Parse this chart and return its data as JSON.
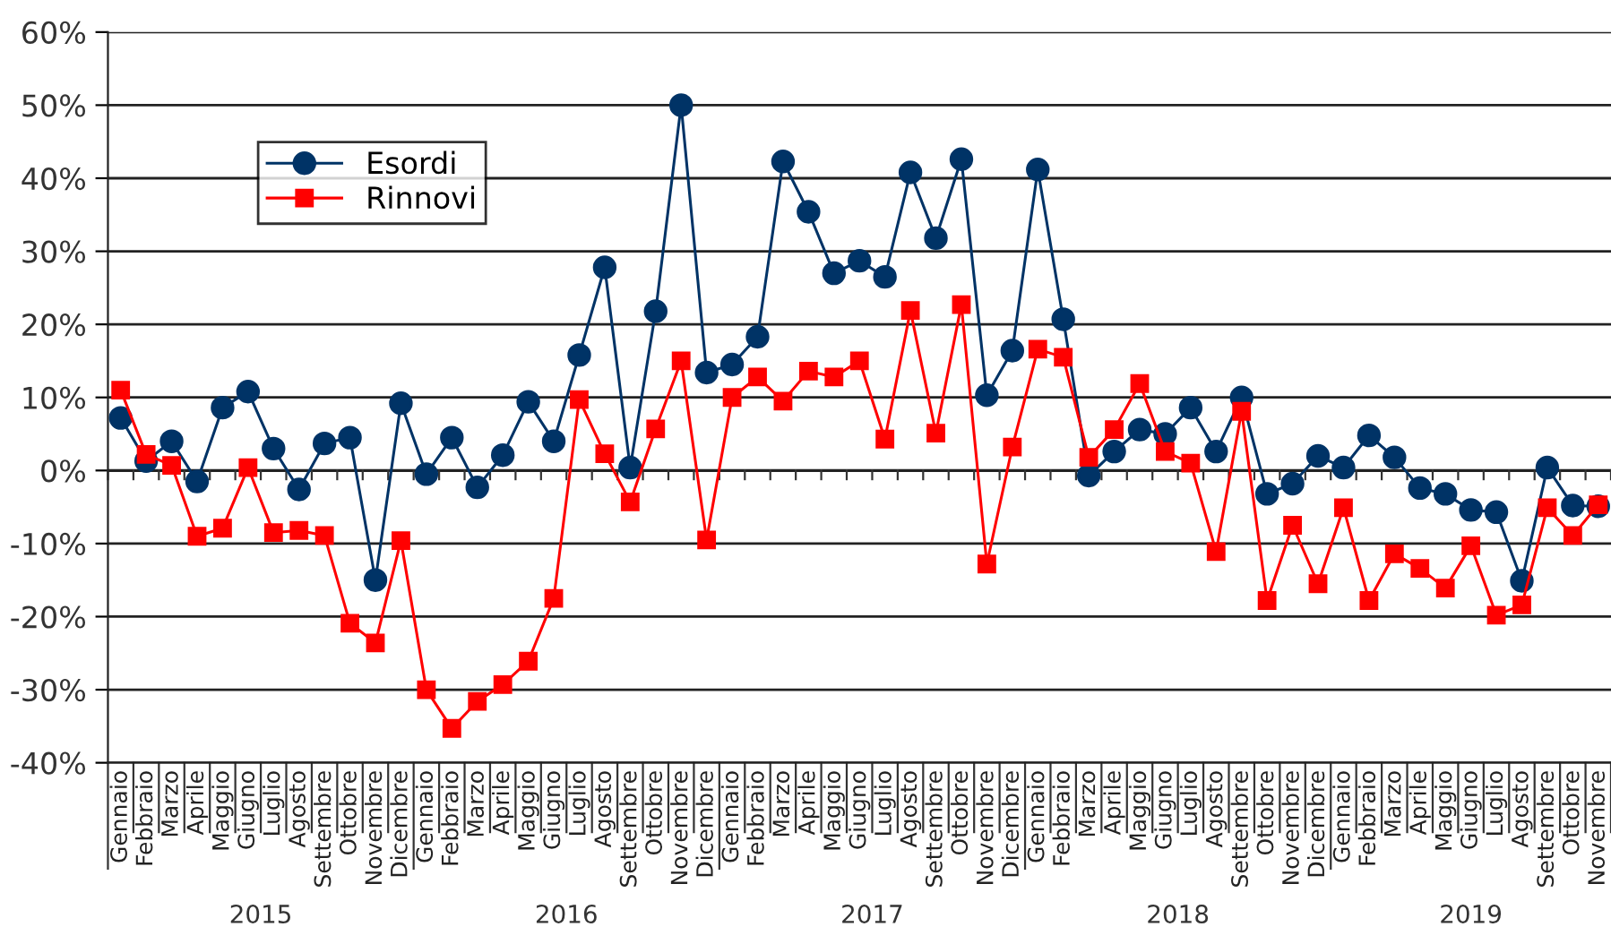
{
  "chart_data": {
    "type": "line",
    "categories": [
      "Gennaio",
      "Febbraio",
      "Marzo",
      "Aprile",
      "Maggio",
      "Giugno",
      "Luglio",
      "Agosto",
      "Settembre",
      "Ottobre",
      "Novembre",
      "Dicembre",
      "Gennaio",
      "Febbraio",
      "Marzo",
      "Aprile",
      "Maggio",
      "Giugno",
      "Luglio",
      "Agosto",
      "Settembre",
      "Ottobre",
      "Novembre",
      "Dicembre",
      "Gennaio",
      "Febbraio",
      "Marzo",
      "Aprile",
      "Maggio",
      "Giugno",
      "Luglio",
      "Agosto",
      "Settembre",
      "Ottobre",
      "Novembre",
      "Dicembre",
      "Gennaio",
      "Febbraio",
      "Marzo",
      "Aprile",
      "Maggio",
      "Giugno",
      "Luglio",
      "Agosto",
      "Settembre",
      "Ottobre",
      "Novembre",
      "Dicembre",
      "Gennaio",
      "Febbraio",
      "Marzo",
      "Aprile",
      "Maggio",
      "Giugno",
      "Luglio",
      "Agosto",
      "Settembre",
      "Ottobre",
      "Novembre"
    ],
    "series": [
      {
        "name": "Esordi",
        "color": "#003366",
        "marker": "circle",
        "values": [
          7.2,
          1.3,
          4,
          -1.5,
          8.6,
          10.8,
          3,
          -2.6,
          3.7,
          4.5,
          -15,
          9.2,
          -0.5,
          4.5,
          -2.3,
          2.1,
          9.4,
          4,
          15.8,
          27.8,
          0.4,
          21.8,
          50,
          13.4,
          14.5,
          18.3,
          42.3,
          35.4,
          27,
          28.7,
          26.5,
          40.8,
          31.8,
          42.6,
          10.3,
          16.4,
          41.2,
          20.7,
          -0.7,
          2.6,
          5.6,
          5,
          8.6,
          2.6,
          10,
          -3.2,
          -1.8,
          2,
          0.4,
          4.8,
          1.8,
          -2.4,
          -3.2,
          -5.4,
          -5.7,
          -15.1,
          0.4,
          -4.8,
          -4.9
        ]
      },
      {
        "name": "Rinnovi",
        "color": "#ff0000",
        "marker": "square",
        "values": [
          11,
          2.2,
          0.7,
          -9,
          -7.9,
          0.4,
          -8.5,
          -8.2,
          -8.9,
          -20.9,
          -23.6,
          -9.6,
          -30,
          -35.3,
          -31.6,
          -29.3,
          -26.1,
          -17.5,
          9.7,
          2.3,
          -4.3,
          5.7,
          15,
          -9.5,
          10,
          12.8,
          9.5,
          13.6,
          12.8,
          15,
          4.3,
          21.9,
          5.1,
          22.7,
          -12.8,
          3.2,
          16.6,
          15.5,
          1.8,
          5.6,
          11.9,
          2.6,
          1,
          -11.1,
          8.1,
          -17.8,
          -7.5,
          -15.5,
          -5.1,
          -17.8,
          -11.4,
          -13.4,
          -16.1,
          -10.3,
          -19.8,
          -18.4,
          -5.1,
          -8.9,
          -4.7
        ]
      }
    ],
    "annotations": [
      "2015",
      "2016",
      "2017",
      "2018",
      "2019"
    ],
    "ylim": [
      -40,
      60
    ],
    "yticks": [
      {
        "value": -40,
        "label": "-40%"
      },
      {
        "value": -30,
        "label": "-30%"
      },
      {
        "value": -20,
        "label": "-20%"
      },
      {
        "value": -10,
        "label": "-10%"
      },
      {
        "value": 0,
        "label": "0%"
      },
      {
        "value": 10,
        "label": "10%"
      },
      {
        "value": 20,
        "label": "20%"
      },
      {
        "value": 30,
        "label": "30%"
      },
      {
        "value": 40,
        "label": "40%"
      },
      {
        "value": 50,
        "label": "50%"
      },
      {
        "value": 60,
        "label": "60%"
      }
    ],
    "grid": "y",
    "legend": "top left",
    "line_style": "solid"
  }
}
